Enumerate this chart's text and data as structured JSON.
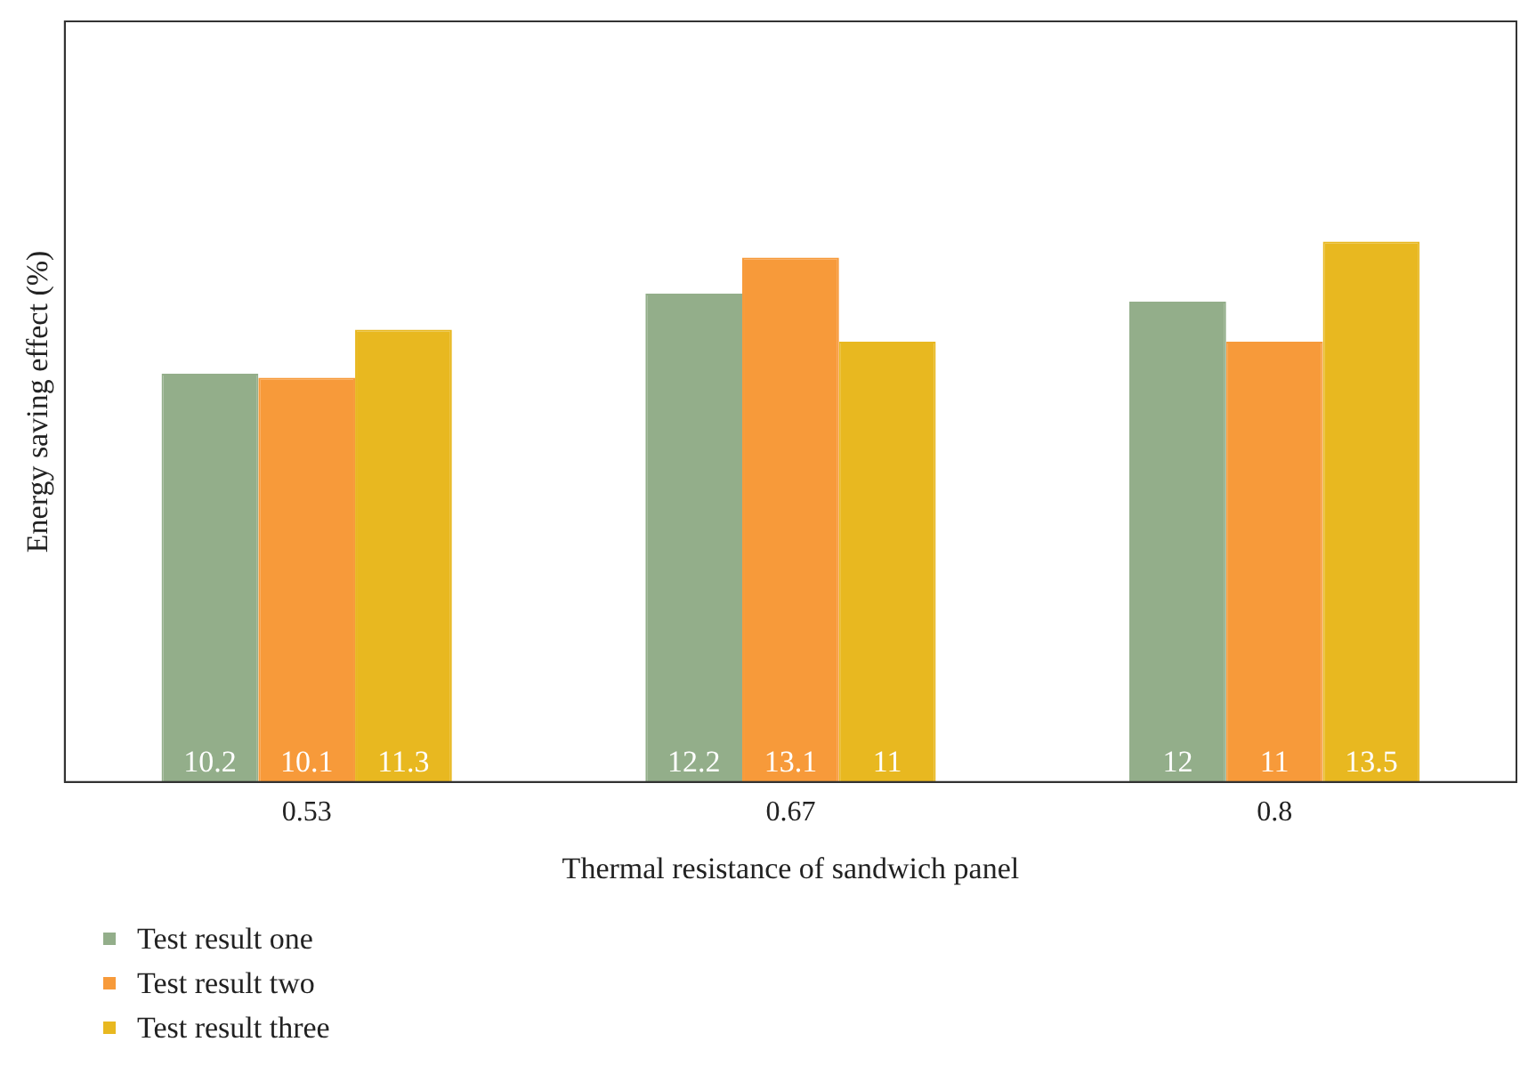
{
  "chart_data": {
    "type": "bar",
    "xlabel": "Thermal resistance of sandwich panel",
    "ylabel": "Energy saving effect (%)",
    "categories": [
      "0.53",
      "0.67",
      "0.8"
    ],
    "series": [
      {
        "name": "Test result one",
        "color": "#93ae8a",
        "values": [
          10.2,
          12.2,
          12
        ]
      },
      {
        "name": "Test result two",
        "color": "#f79a3a",
        "values": [
          10.1,
          13.1,
          11
        ]
      },
      {
        "name": "Test result three",
        "color": "#e8b820",
        "values": [
          11.3,
          11,
          13.5
        ]
      }
    ],
    "ylim": [
      0,
      19
    ],
    "data_labels": true,
    "grid": false,
    "legend": "bottom left"
  }
}
